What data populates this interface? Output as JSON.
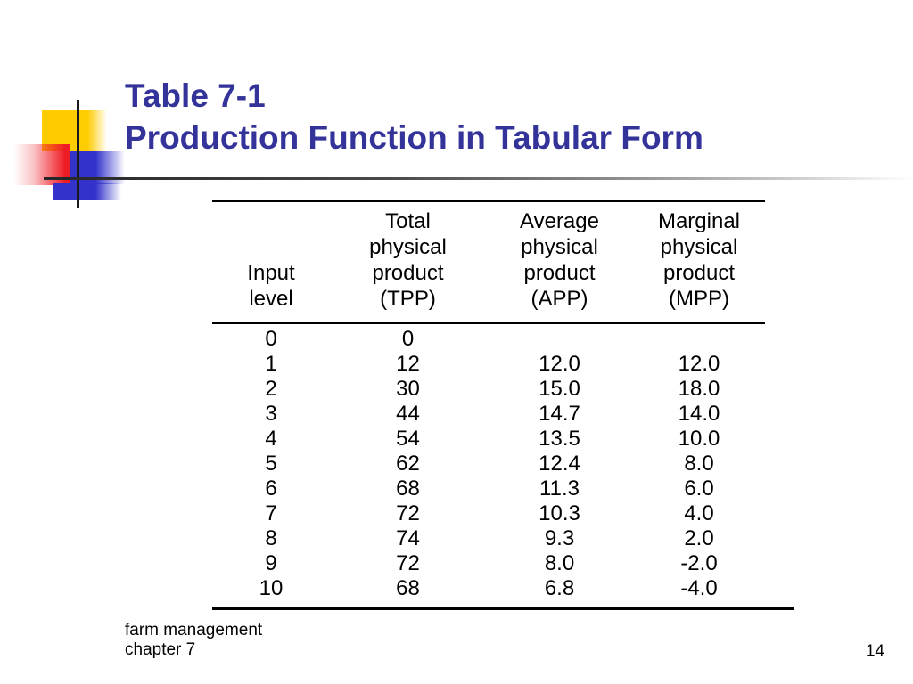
{
  "colors": {
    "title_blue": "#333399",
    "decor_yellow": "#FFCC00",
    "decor_red": "#EE1C25",
    "decor_blue": "#3333CC",
    "line_dark": "#1A1A1A"
  },
  "title": {
    "line1": "Table 7-1",
    "line2": "Production Function in Tabular Form"
  },
  "footer": {
    "line1": "farm management",
    "line2": "chapter 7",
    "page_number": "14"
  },
  "chart_data": {
    "type": "table",
    "title": "Table 7-1 Production Function in Tabular Form",
    "columns": [
      "Input level",
      "Total physical product (TPP)",
      "Average physical product (APP)",
      "Marginal physical product (MPP)"
    ],
    "header_lines": [
      [
        "Input",
        "level"
      ],
      [
        "Total",
        "physical",
        "product",
        "(TPP)"
      ],
      [
        "Average",
        "physical",
        "product",
        "(APP)"
      ],
      [
        "Marginal",
        "physical",
        "product",
        "(MPP)"
      ]
    ],
    "rows": [
      [
        "0",
        "0",
        "",
        ""
      ],
      [
        "1",
        "12",
        "12.0",
        "12.0"
      ],
      [
        "2",
        "30",
        "15.0",
        "18.0"
      ],
      [
        "3",
        "44",
        "14.7",
        "14.0"
      ],
      [
        "4",
        "54",
        "13.5",
        "10.0"
      ],
      [
        "5",
        "62",
        "12.4",
        "8.0"
      ],
      [
        "6",
        "68",
        "11.3",
        "6.0"
      ],
      [
        "7",
        "72",
        "10.3",
        "4.0"
      ],
      [
        "8",
        "74",
        "9.3",
        "2.0"
      ],
      [
        "9",
        "72",
        "8.0",
        "-2.0"
      ],
      [
        "10",
        "68",
        "6.8",
        "-4.0"
      ]
    ],
    "input_levels": [
      0,
      1,
      2,
      3,
      4,
      5,
      6,
      7,
      8,
      9,
      10
    ],
    "tpp": [
      0,
      12,
      30,
      44,
      54,
      62,
      68,
      72,
      74,
      72,
      68
    ],
    "app": [
      null,
      12.0,
      15.0,
      14.7,
      13.5,
      12.4,
      11.3,
      10.3,
      9.3,
      8.0,
      6.8
    ],
    "mpp": [
      null,
      12.0,
      18.0,
      14.0,
      10.0,
      8.0,
      6.0,
      4.0,
      2.0,
      -2.0,
      -4.0
    ]
  }
}
